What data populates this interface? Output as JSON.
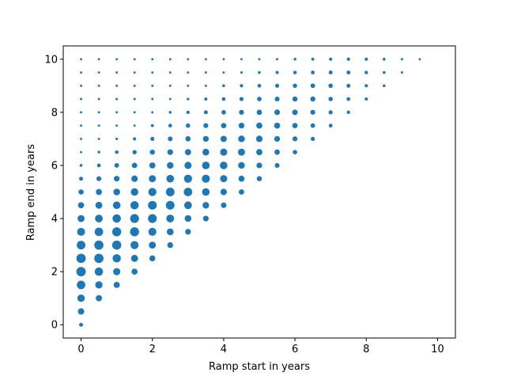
{
  "chart_data": {
    "type": "scatter",
    "title": "",
    "xlabel": "Ramp start in years",
    "ylabel": "Ramp end in years",
    "xlim": [
      -0.5,
      10.5
    ],
    "ylim": [
      -0.5,
      10.5
    ],
    "xticks": [
      0,
      2,
      4,
      6,
      8,
      10
    ],
    "yticks": [
      0,
      2,
      4,
      6,
      8,
      10
    ],
    "grid": false,
    "marker_color": "#1f77b4",
    "x_step": 0.5,
    "y_step": 0.5,
    "size_encoding": "marker area scales with an unlabeled per-point magnitude (0-1)",
    "points_rule": "one point for every (start, end) on a 0.5-year grid with 0 <= start < end <= 10 (start 0 also has end 0)",
    "note": "x = ramp start (years), y = ramp end (years)"
  }
}
